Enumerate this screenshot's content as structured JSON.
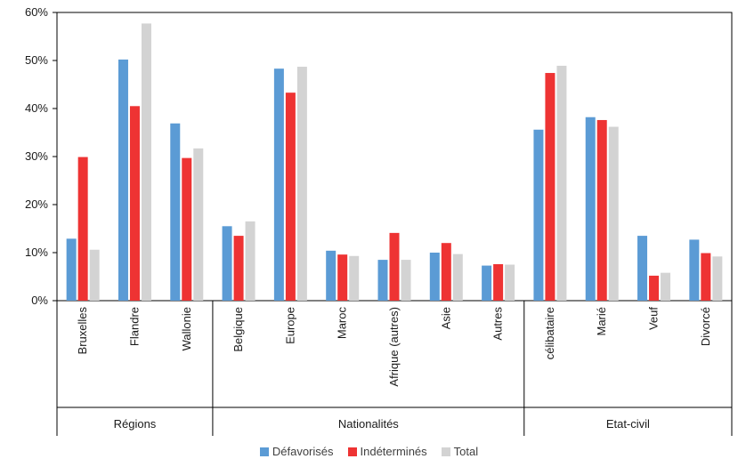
{
  "chart_data": {
    "type": "bar",
    "title": "",
    "xlabel": "",
    "ylabel": "",
    "ylim": [
      0,
      60
    ],
    "yticks": [
      "0%",
      "10%",
      "20%",
      "30%",
      "40%",
      "50%",
      "60%"
    ],
    "grid": false,
    "legend_position": "bottom",
    "categories": [
      "Bruxelles",
      "Flandre",
      "Wallonie",
      "Belgique",
      "Europe",
      "Maroc",
      "Afrique (autres)",
      "Asie",
      "Autres",
      "célibataire",
      "Marié",
      "Veuf",
      "Divorcé"
    ],
    "groups": [
      {
        "label": "Régions",
        "count": 3
      },
      {
        "label": "Nationalités",
        "count": 6
      },
      {
        "label": "Etat-civil",
        "count": 4
      }
    ],
    "series": [
      {
        "name": "Défavorisés",
        "color": "#5b9bd5",
        "values": [
          12.9,
          50.2,
          36.9,
          15.5,
          48.3,
          10.4,
          8.5,
          10.0,
          7.3,
          35.6,
          38.2,
          13.5,
          12.7
        ]
      },
      {
        "name": "Indéterminés",
        "color": "#ee3333",
        "values": [
          29.9,
          40.5,
          29.7,
          13.5,
          43.3,
          9.6,
          14.1,
          12.0,
          7.6,
          47.4,
          37.6,
          5.2,
          9.9
        ]
      },
      {
        "name": "Total",
        "color": "#d3d3d3",
        "values": [
          10.6,
          57.7,
          31.7,
          16.5,
          48.7,
          9.3,
          8.5,
          9.7,
          7.5,
          48.9,
          36.2,
          5.8,
          9.2
        ]
      }
    ]
  }
}
